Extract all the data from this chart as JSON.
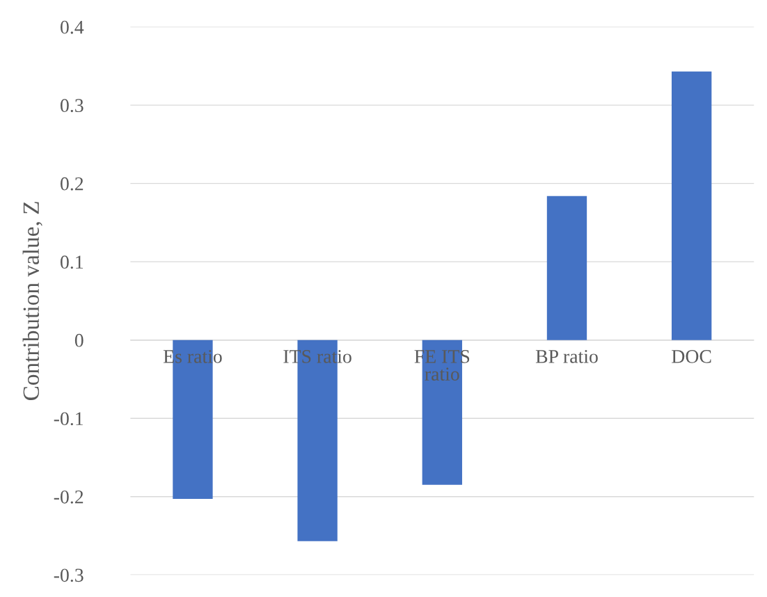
{
  "chart_data": {
    "type": "bar",
    "ylabel": "Contribution value, Z",
    "categories": [
      "Es ratio",
      "ITS ratio",
      "FE ITS\nratio",
      "BP ratio",
      "DOC"
    ],
    "values": [
      -0.203,
      -0.257,
      -0.185,
      0.184,
      0.343
    ],
    "color": "#4472c4",
    "ylim": [
      -0.3,
      0.4
    ],
    "yticks": [
      -0.3,
      -0.2,
      -0.1,
      0,
      0.1,
      0.2,
      0.3,
      0.4
    ],
    "grid": "y",
    "legend": false
  }
}
